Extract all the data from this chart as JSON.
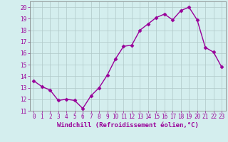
{
  "x": [
    0,
    1,
    2,
    3,
    4,
    5,
    6,
    7,
    8,
    9,
    10,
    11,
    12,
    13,
    14,
    15,
    16,
    17,
    18,
    19,
    20,
    21,
    22,
    23
  ],
  "y": [
    13.6,
    13.1,
    12.8,
    11.9,
    12.0,
    11.9,
    11.2,
    12.3,
    13.0,
    14.1,
    15.5,
    16.6,
    16.7,
    18.0,
    18.55,
    19.1,
    19.4,
    18.9,
    19.7,
    20.0,
    18.9,
    16.5,
    16.1,
    14.8
  ],
  "line_color": "#990099",
  "marker": "D",
  "markersize": 2.5,
  "linewidth": 1.0,
  "xlabel": "Windchill (Refroidissement éolien,°C)",
  "xlabel_fontsize": 6.5,
  "background_color": "#d4eeee",
  "grid_color": "#b0c8c8",
  "xlim": [
    -0.5,
    23.5
  ],
  "ylim": [
    11,
    20.5
  ],
  "yticks": [
    11,
    12,
    13,
    14,
    15,
    16,
    17,
    18,
    19,
    20
  ],
  "xticks": [
    0,
    1,
    2,
    3,
    4,
    5,
    6,
    7,
    8,
    9,
    10,
    11,
    12,
    13,
    14,
    15,
    16,
    17,
    18,
    19,
    20,
    21,
    22,
    23
  ],
  "tick_fontsize": 5.5,
  "tick_color": "#990099",
  "spine_color": "#777777"
}
